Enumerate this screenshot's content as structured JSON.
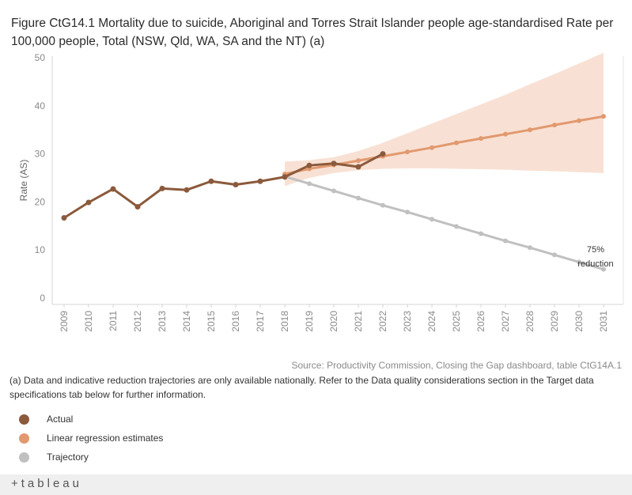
{
  "title": "Figure CtG14.1 Mortality due to suicide, Aboriginal and Torres Strait Islander people age-standardised Rate per 100,000 people, Total (NSW, Qld, WA, SA and the NT) (a)",
  "chart_data": {
    "type": "line",
    "ylabel": "Rate (AS)",
    "xlabel": "",
    "ylim": [
      0,
      50
    ],
    "yticks": [
      0,
      10,
      20,
      30,
      40,
      50
    ],
    "x": [
      "2009",
      "2010",
      "2011",
      "2012",
      "2013",
      "2014",
      "2015",
      "2016",
      "2017",
      "2018",
      "2019",
      "2020",
      "2021",
      "2022",
      "2023",
      "2024",
      "2025",
      "2026",
      "2027",
      "2028",
      "2029",
      "2030",
      "2031"
    ],
    "series": [
      {
        "name": "Actual",
        "color": "#8b5a3c",
        "x": [
          "2009",
          "2010",
          "2011",
          "2012",
          "2013",
          "2014",
          "2015",
          "2016",
          "2017",
          "2018",
          "2019",
          "2020",
          "2021",
          "2022"
        ],
        "values": [
          16.7,
          19.9,
          22.7,
          19.0,
          22.8,
          22.5,
          24.3,
          23.6,
          24.3,
          25.2,
          27.6,
          28.0,
          27.3,
          30.0
        ]
      },
      {
        "name": "Linear regression estimates",
        "color": "#e2996f",
        "x": [
          "2018",
          "2019",
          "2020",
          "2021",
          "2022",
          "2023",
          "2024",
          "2025",
          "2026",
          "2027",
          "2028",
          "2029",
          "2030",
          "2031"
        ],
        "values": [
          25.8,
          26.9,
          27.7,
          28.6,
          29.5,
          30.4,
          31.3,
          32.3,
          33.2,
          34.1,
          35.0,
          36.0,
          36.9,
          37.8
        ]
      },
      {
        "name": "Trajectory",
        "color": "#c0c0c0",
        "x": [
          "2018",
          "2019",
          "2020",
          "2021",
          "2022",
          "2023",
          "2024",
          "2025",
          "2026",
          "2027",
          "2028",
          "2029",
          "2030",
          "2031"
        ],
        "values": [
          25.3,
          23.8,
          22.3,
          20.8,
          19.3,
          17.9,
          16.4,
          14.9,
          13.4,
          11.9,
          10.5,
          9.0,
          7.5,
          6.0
        ]
      }
    ],
    "confidence_band": {
      "x": [
        "2018",
        "2019",
        "2020",
        "2021",
        "2022",
        "2023",
        "2024",
        "2025",
        "2026",
        "2027",
        "2028",
        "2029",
        "2030",
        "2031"
      ],
      "lower": [
        23.3,
        25.0,
        26.0,
        26.6,
        26.9,
        27.0,
        27.0,
        26.9,
        26.8,
        26.7,
        26.5,
        26.4,
        26.2,
        26.0
      ],
      "upper": [
        28.4,
        28.7,
        29.3,
        30.6,
        32.3,
        34.3,
        36.3,
        38.3,
        40.3,
        42.3,
        44.5,
        46.6,
        48.8,
        51.0
      ],
      "color": "#f2c9b1"
    },
    "annotation": {
      "x": "2031",
      "line1": "75%",
      "line2": "reduction"
    }
  },
  "source": "Source: Productivity Commission, Closing the Gap dashboard, table CtG14A.1",
  "note": "(a) Data and indicative reduction trajectories are only available nationally. Refer to the Data quality considerations section in the Target data specifications tab below for further information.",
  "legend": [
    {
      "label": "Actual",
      "color": "#8b5a3c"
    },
    {
      "label": "Linear regression estimates",
      "color": "#e2996f"
    },
    {
      "label": "Trajectory",
      "color": "#c0c0c0"
    }
  ],
  "footer": {
    "logo_text": "+tableau",
    "logo_icon": "tableau-plus-icon"
  }
}
